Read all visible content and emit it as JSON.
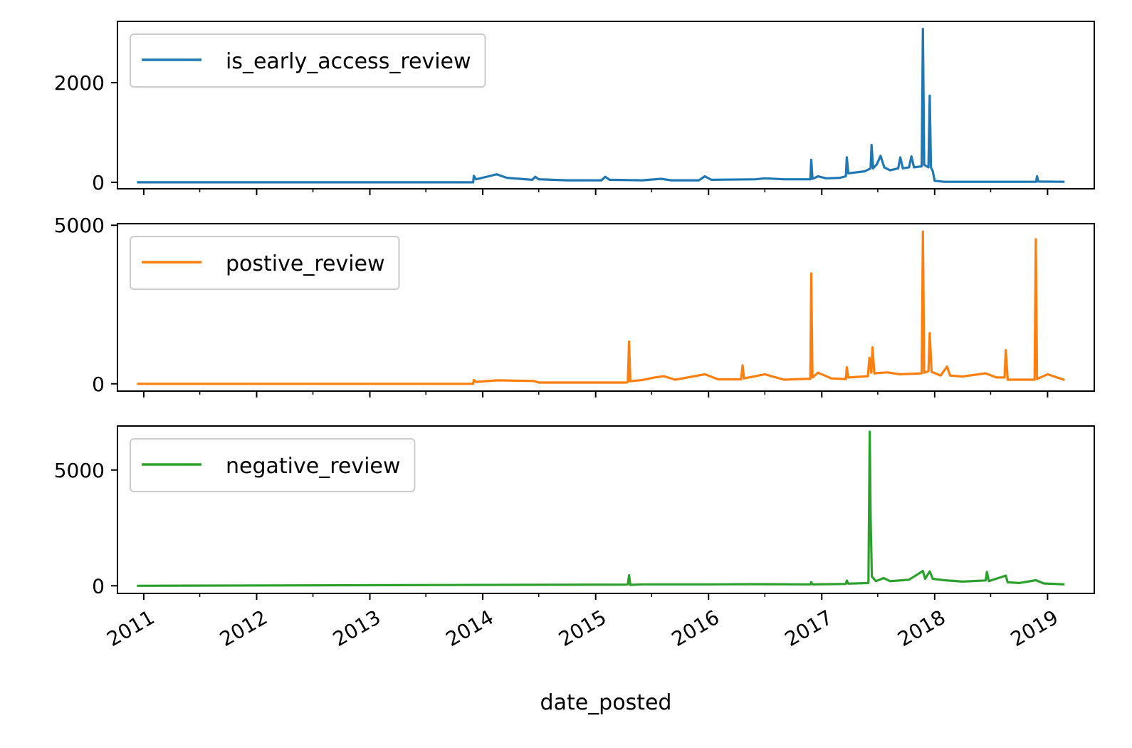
{
  "chart_data": {
    "type": "line",
    "xlabel": "date_posted",
    "x_ticks": [
      "2011",
      "2012",
      "2013",
      "2014",
      "2015",
      "2016",
      "2017",
      "2018",
      "2019"
    ],
    "x_range": [
      "2010-10-08",
      "2019-06-01"
    ],
    "legend_position": "top-left",
    "panels": [
      {
        "name": "is_early_access_review",
        "color": "#1f77b4",
        "ylim": [
          -130,
          3230
        ],
        "y_ticks": [
          0,
          2000
        ],
        "points": [
          [
            "2010-12-10",
            0
          ],
          [
            "2013-12-01",
            0
          ],
          [
            "2013-12-03",
            130
          ],
          [
            "2013-12-10",
            60
          ],
          [
            "2014-01-20",
            120
          ],
          [
            "2014-02-15",
            160
          ],
          [
            "2014-03-20",
            90
          ],
          [
            "2014-06-10",
            50
          ],
          [
            "2014-06-20",
            110
          ],
          [
            "2014-07-01",
            60
          ],
          [
            "2014-10-01",
            40
          ],
          [
            "2015-01-20",
            40
          ],
          [
            "2015-02-01",
            110
          ],
          [
            "2015-02-15",
            50
          ],
          [
            "2015-06-01",
            40
          ],
          [
            "2015-08-01",
            70
          ],
          [
            "2015-09-01",
            40
          ],
          [
            "2015-12-01",
            40
          ],
          [
            "2015-12-20",
            120
          ],
          [
            "2016-01-10",
            50
          ],
          [
            "2016-06-01",
            60
          ],
          [
            "2016-07-01",
            80
          ],
          [
            "2016-09-01",
            60
          ],
          [
            "2016-11-25",
            60
          ],
          [
            "2016-11-28",
            450
          ],
          [
            "2016-12-02",
            70
          ],
          [
            "2016-12-20",
            120
          ],
          [
            "2017-01-15",
            80
          ],
          [
            "2017-03-01",
            90
          ],
          [
            "2017-03-20",
            120
          ],
          [
            "2017-03-23",
            500
          ],
          [
            "2017-03-28",
            180
          ],
          [
            "2017-05-20",
            220
          ],
          [
            "2017-06-08",
            280
          ],
          [
            "2017-06-11",
            750
          ],
          [
            "2017-06-16",
            280
          ],
          [
            "2017-06-28",
            360
          ],
          [
            "2017-07-10",
            530
          ],
          [
            "2017-07-22",
            300
          ],
          [
            "2017-08-10",
            240
          ],
          [
            "2017-09-05",
            280
          ],
          [
            "2017-09-12",
            500
          ],
          [
            "2017-09-20",
            280
          ],
          [
            "2017-10-10",
            300
          ],
          [
            "2017-10-18",
            520
          ],
          [
            "2017-10-26",
            300
          ],
          [
            "2017-11-20",
            320
          ],
          [
            "2017-11-24",
            3080
          ],
          [
            "2017-11-28",
            350
          ],
          [
            "2017-12-12",
            300
          ],
          [
            "2017-12-16",
            1740
          ],
          [
            "2017-12-20",
            300
          ],
          [
            "2017-12-26",
            220
          ],
          [
            "2018-01-01",
            30
          ],
          [
            "2018-02-01",
            10
          ],
          [
            "2018-11-25",
            10
          ],
          [
            "2018-11-28",
            120
          ],
          [
            "2018-12-02",
            15
          ],
          [
            "2019-02-25",
            10
          ]
        ]
      },
      {
        "name": "postive_review",
        "color": "#ff7f0e",
        "ylim": [
          -230,
          5050
        ],
        "y_ticks": [
          0,
          5000
        ],
        "points": [
          [
            "2010-12-10",
            0
          ],
          [
            "2013-12-01",
            0
          ],
          [
            "2013-12-03",
            120
          ],
          [
            "2013-12-10",
            60
          ],
          [
            "2014-02-15",
            110
          ],
          [
            "2014-06-15",
            90
          ],
          [
            "2014-07-01",
            40
          ],
          [
            "2015-04-10",
            40
          ],
          [
            "2015-04-15",
            60
          ],
          [
            "2015-04-19",
            1330
          ],
          [
            "2015-04-23",
            80
          ],
          [
            "2015-06-01",
            120
          ],
          [
            "2015-07-10",
            200
          ],
          [
            "2015-08-10",
            240
          ],
          [
            "2015-09-15",
            130
          ],
          [
            "2015-12-20",
            300
          ],
          [
            "2016-02-01",
            140
          ],
          [
            "2016-04-15",
            140
          ],
          [
            "2016-04-20",
            580
          ],
          [
            "2016-04-25",
            170
          ],
          [
            "2016-07-01",
            300
          ],
          [
            "2016-09-01",
            130
          ],
          [
            "2016-11-25",
            160
          ],
          [
            "2016-11-28",
            3480
          ],
          [
            "2016-12-02",
            200
          ],
          [
            "2016-12-20",
            350
          ],
          [
            "2017-02-01",
            170
          ],
          [
            "2017-03-20",
            150
          ],
          [
            "2017-03-23",
            520
          ],
          [
            "2017-03-28",
            200
          ],
          [
            "2017-05-30",
            240
          ],
          [
            "2017-06-04",
            820
          ],
          [
            "2017-06-10",
            350
          ],
          [
            "2017-06-14",
            1150
          ],
          [
            "2017-06-20",
            330
          ],
          [
            "2017-08-01",
            360
          ],
          [
            "2017-09-10",
            300
          ],
          [
            "2017-11-20",
            330
          ],
          [
            "2017-11-24",
            4800
          ],
          [
            "2017-11-28",
            350
          ],
          [
            "2017-12-12",
            400
          ],
          [
            "2017-12-16",
            1600
          ],
          [
            "2017-12-22",
            380
          ],
          [
            "2018-01-20",
            260
          ],
          [
            "2018-02-10",
            540
          ],
          [
            "2018-02-20",
            260
          ],
          [
            "2018-04-01",
            230
          ],
          [
            "2018-06-15",
            330
          ],
          [
            "2018-07-20",
            200
          ],
          [
            "2018-08-15",
            200
          ],
          [
            "2018-08-19",
            1060
          ],
          [
            "2018-08-25",
            130
          ],
          [
            "2018-11-20",
            130
          ],
          [
            "2018-11-24",
            4560
          ],
          [
            "2018-11-28",
            150
          ],
          [
            "2019-01-01",
            300
          ],
          [
            "2019-02-25",
            120
          ]
        ]
      },
      {
        "name": "negative_review",
        "color": "#2ca02c",
        "ylim": [
          -330,
          6900
        ],
        "y_ticks": [
          0,
          5000
        ],
        "points": [
          [
            "2010-12-10",
            0
          ],
          [
            "2015-04-10",
            50
          ],
          [
            "2015-04-15",
            60
          ],
          [
            "2015-04-19",
            450
          ],
          [
            "2015-04-23",
            40
          ],
          [
            "2015-06-01",
            60
          ],
          [
            "2016-01-01",
            60
          ],
          [
            "2016-06-01",
            70
          ],
          [
            "2016-11-25",
            60
          ],
          [
            "2016-11-28",
            160
          ],
          [
            "2016-12-02",
            60
          ],
          [
            "2017-03-20",
            80
          ],
          [
            "2017-03-23",
            220
          ],
          [
            "2017-03-28",
            90
          ],
          [
            "2017-06-01",
            120
          ],
          [
            "2017-06-05",
            6650
          ],
          [
            "2017-06-08",
            2900
          ],
          [
            "2017-06-12",
            400
          ],
          [
            "2017-06-25",
            200
          ],
          [
            "2017-07-20",
            330
          ],
          [
            "2017-08-10",
            200
          ],
          [
            "2017-10-10",
            260
          ],
          [
            "2017-11-24",
            640
          ],
          [
            "2017-12-01",
            300
          ],
          [
            "2017-12-16",
            620
          ],
          [
            "2017-12-26",
            300
          ],
          [
            "2018-02-01",
            240
          ],
          [
            "2018-04-01",
            180
          ],
          [
            "2018-06-15",
            230
          ],
          [
            "2018-06-19",
            600
          ],
          [
            "2018-06-25",
            200
          ],
          [
            "2018-08-19",
            440
          ],
          [
            "2018-08-25",
            150
          ],
          [
            "2018-10-01",
            120
          ],
          [
            "2018-11-24",
            240
          ],
          [
            "2018-12-20",
            100
          ],
          [
            "2019-02-25",
            60
          ]
        ]
      }
    ]
  }
}
